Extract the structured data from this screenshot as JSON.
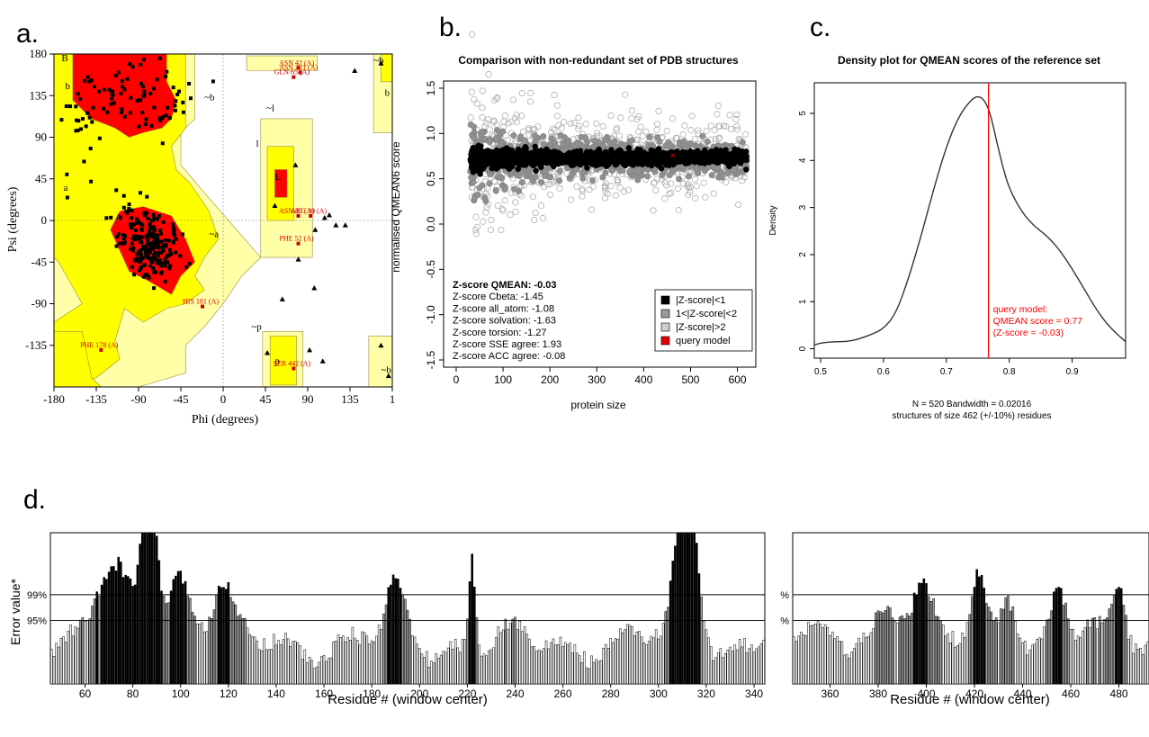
{
  "panel_letters": {
    "a": "a.",
    "b": "b.",
    "c": "c.",
    "d": "d."
  },
  "colors": {
    "core": "#ff0000",
    "allowed": "#ffff00",
    "generous": "#ffffa8",
    "outside": "#f4f0b8",
    "query": "#e00000",
    "bar_fill": "#ffffff",
    "bar_gray": "#9a9a9a",
    "bar_black": "#000000"
  },
  "chart_data": [
    {
      "id": "a",
      "type": "scatter",
      "title": "",
      "xlabel": "Phi (degrees)",
      "ylabel": "Psi (degrees)",
      "xlim": [
        -180,
        180
      ],
      "ylim": [
        -180,
        180
      ],
      "xticks": [
        "-180",
        "-135",
        "-90",
        "-45",
        "0",
        "45",
        "90",
        "135",
        "1"
      ],
      "yticks": [
        "180",
        "135",
        "90",
        "45",
        "0",
        "-45",
        "-90",
        "-135"
      ],
      "region_labels": [
        "B",
        "b",
        "a",
        "A",
        "~b",
        "~a",
        "~l",
        "l",
        "L",
        "~p",
        "p",
        "~b",
        "b",
        "~b"
      ],
      "annotations": [
        {
          "text": "ASN 42 (A)",
          "phi": 80,
          "psi": 165
        },
        {
          "text": "ASN 321 (A)",
          "phi": 82,
          "psi": 160
        },
        {
          "text": "GLN 65 (A)",
          "phi": 75,
          "psi": 155
        },
        {
          "text": "ASN 85 (A)",
          "phi": 80,
          "psi": 5
        },
        {
          "text": "ARG 30 (A)",
          "phi": 93,
          "psi": 5
        },
        {
          "text": "PHE 52 (A)",
          "phi": 80,
          "psi": -25
        },
        {
          "text": "HIS 181 (A)",
          "phi": -22,
          "psi": -93
        },
        {
          "text": "PHE 178 (A)",
          "phi": -130,
          "psi": -140
        },
        {
          "text": "SER 442 (A)",
          "phi": 75,
          "psi": -160
        }
      ],
      "glycine_points": [
        [
          63,
          -85
        ],
        [
          97,
          -73
        ],
        [
          120,
          -5
        ],
        [
          113,
          6
        ],
        [
          130,
          -5
        ],
        [
          77,
          60
        ],
        [
          92,
          -140
        ],
        [
          80,
          -42
        ],
        [
          98,
          -10
        ],
        [
          55,
          16
        ],
        [
          108,
          3
        ],
        [
          47,
          -143
        ],
        [
          140,
          162
        ],
        [
          168,
          170
        ],
        [
          176,
          -168
        ],
        [
          106,
          -152
        ],
        [
          168,
          -135
        ]
      ]
    },
    {
      "id": "b",
      "type": "scatter",
      "title": "Comparison with non-redundant set of PDB structures",
      "xlabel": "protein size",
      "ylabel": "normalised QMEAN6 score",
      "xlim": [
        0,
        620
      ],
      "ylim": [
        -1.5,
        1.5
      ],
      "xticks": [
        "0",
        "100",
        "200",
        "300",
        "400",
        "500",
        "600"
      ],
      "yticks": [
        "1.5",
        "1.0",
        "0.5",
        "0.0",
        "-0.5",
        "-1.0",
        "-1.5"
      ],
      "query_point": {
        "x": 462,
        "y": 0.76
      },
      "legend": [
        "|Z-score|<1",
        "1<|Z-score|<2",
        "|Z-score|>2",
        "query model"
      ],
      "zscores": [
        "Z-score QMEAN: -0.03",
        "Z-score Cbeta: -1.45",
        "Z-score all_atom: -1.08",
        "Z-score solvation: -1.63",
        "Z-score torsion: -1.27",
        "Z-score SSE agree: 1.93",
        "Z-score ACC agree: -0.08"
      ]
    },
    {
      "id": "c",
      "type": "line",
      "title": "Density plot for QMEAN scores of the reference set",
      "xlabel": "",
      "ylabel": "Density",
      "xlim": [
        0.49,
        0.985
      ],
      "ylim": [
        -0.2,
        5.65
      ],
      "xticks": [
        "0.5",
        "0.6",
        "0.7",
        "0.8",
        "0.9"
      ],
      "yticks": [
        "0",
        "1",
        "2",
        "3",
        "4",
        "5"
      ],
      "x": [
        0.49,
        0.5,
        0.52,
        0.54,
        0.56,
        0.58,
        0.6,
        0.62,
        0.64,
        0.66,
        0.68,
        0.7,
        0.72,
        0.74,
        0.75,
        0.76,
        0.77,
        0.78,
        0.79,
        0.8,
        0.82,
        0.84,
        0.86,
        0.88,
        0.9,
        0.92,
        0.94,
        0.96,
        0.985
      ],
      "y": [
        0.08,
        0.12,
        0.15,
        0.15,
        0.2,
        0.3,
        0.42,
        0.75,
        1.5,
        2.4,
        3.4,
        4.3,
        4.95,
        5.3,
        5.37,
        5.3,
        5.0,
        4.4,
        3.85,
        3.4,
        2.9,
        2.6,
        2.4,
        2.1,
        1.7,
        1.25,
        0.8,
        0.45,
        0.15
      ],
      "query_line": 0.767,
      "query_text": [
        "query model:",
        "QMEAN score = 0.77",
        "(Z-score = -0.03)"
      ],
      "footer": [
        "N = 520   Bandwidth = 0.02016",
        "structures of size 462 (+/-10%) residues"
      ]
    },
    {
      "id": "d",
      "type": "bar",
      "title": "",
      "ylabel": "Error value*",
      "xlabel_left": "Residue # (window center)",
      "xlabel_right": "Residue # (window center)",
      "threshold_labels": [
        "99%",
        "95%"
      ],
      "threshold_labels_right": [
        "%",
        "%"
      ],
      "xticks_left": [
        "60",
        "80",
        "100",
        "120",
        "140",
        "160",
        "180",
        "200",
        "220",
        "240",
        "260",
        "280",
        "300",
        "320",
        "340"
      ],
      "xticks_right": [
        "360",
        "380",
        "400",
        "420",
        "440",
        "460",
        "480"
      ],
      "range_left": [
        46,
        344
      ],
      "range_right": [
        345,
        492
      ],
      "ylim": [
        0,
        100
      ],
      "thresholds": [
        59,
        42
      ]
    }
  ]
}
